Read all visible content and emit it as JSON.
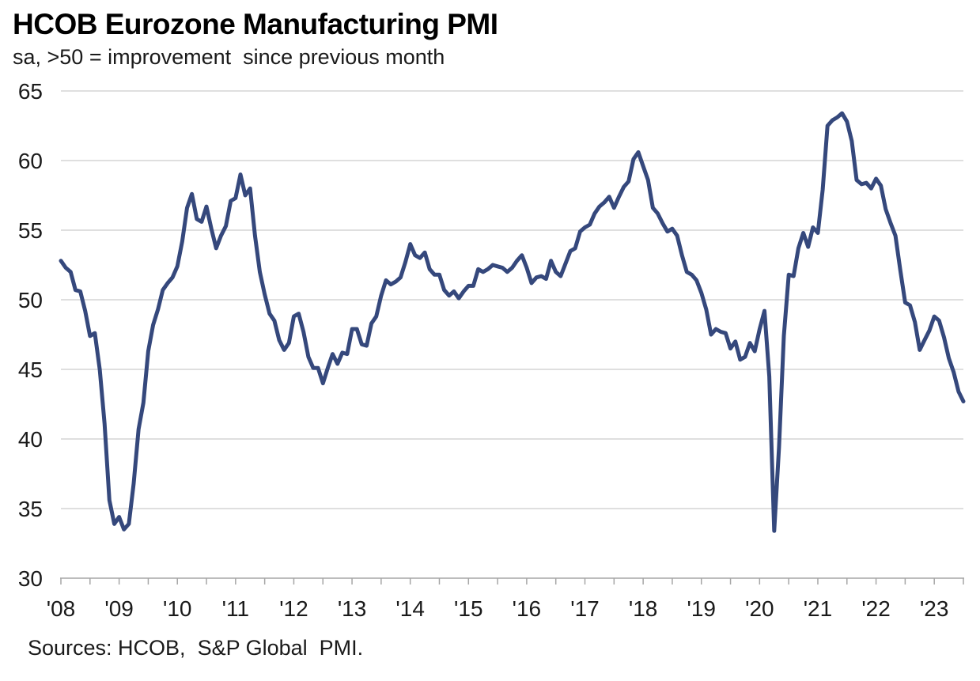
{
  "header": {
    "title": "HCOB Eurozone Manufacturing PMI",
    "subtitle": "sa, >50 = improvement  since previous month"
  },
  "footer": {
    "source": "Sources: HCOB,  S&P Global  PMI."
  },
  "chart_data": {
    "type": "line",
    "title": "HCOB Eurozone Manufacturing PMI",
    "subtitle": "sa, >50 = improvement since previous month",
    "source": "Sources: HCOB, S&P Global PMI.",
    "frequency": "monthly",
    "x_start": "2008-01",
    "x_end": "2023-07",
    "xlabel": "",
    "ylabel": "",
    "ylim": [
      30,
      65
    ],
    "y_ticks": [
      30,
      35,
      40,
      45,
      50,
      55,
      60,
      65
    ],
    "x_tick_labels": [
      "'08",
      "'09",
      "'10",
      "'11",
      "'12",
      "'13",
      "'14",
      "'15",
      "'16",
      "'17",
      "'18",
      "'19",
      "'20",
      "'21",
      "'22",
      "'23"
    ],
    "x_minor_ticks": "every 6 months",
    "grid": "horizontal",
    "legend": "none",
    "line_color": "#35487c",
    "grid_color": "#cccccc",
    "axis_color": "#a6a6a6",
    "label_color": "#1a1a1a",
    "series": [
      {
        "name": "Eurozone Manufacturing PMI (sa)",
        "values_by_year": {
          "2008": [
            52.8,
            52.3,
            52.0,
            50.7,
            50.6,
            49.2,
            47.4,
            47.6,
            45.0,
            41.1,
            35.6,
            33.9
          ],
          "2009": [
            34.4,
            33.5,
            33.9,
            36.8,
            40.7,
            42.6,
            46.3,
            48.2,
            49.3,
            50.7,
            51.2,
            51.6
          ],
          "2010": [
            52.4,
            54.2,
            56.6,
            57.6,
            55.8,
            55.6,
            56.7,
            55.1,
            53.7,
            54.6,
            55.3,
            57.1
          ],
          "2011": [
            57.3,
            59.0,
            57.5,
            58.0,
            54.6,
            52.0,
            50.4,
            49.0,
            48.5,
            47.1,
            46.4,
            46.9
          ],
          "2012": [
            48.8,
            49.0,
            47.7,
            45.9,
            45.1,
            45.1,
            44.0,
            45.1,
            46.1,
            45.4,
            46.2,
            46.1
          ],
          "2013": [
            47.9,
            47.9,
            46.8,
            46.7,
            48.3,
            48.8,
            50.3,
            51.4,
            51.1,
            51.3,
            51.6,
            52.7
          ],
          "2014": [
            54.0,
            53.2,
            53.0,
            53.4,
            52.2,
            51.8,
            51.8,
            50.7,
            50.3,
            50.6,
            50.1,
            50.6
          ],
          "2015": [
            51.0,
            51.0,
            52.2,
            52.0,
            52.2,
            52.5,
            52.4,
            52.3,
            52.0,
            52.3,
            52.8,
            53.2
          ],
          "2016": [
            52.3,
            51.2,
            51.6,
            51.7,
            51.5,
            52.8,
            52.0,
            51.7,
            52.6,
            53.5,
            53.7,
            54.9
          ],
          "2017": [
            55.2,
            55.4,
            56.2,
            56.7,
            57.0,
            57.4,
            56.6,
            57.4,
            58.1,
            58.5,
            60.1,
            60.6
          ],
          "2018": [
            59.6,
            58.6,
            56.6,
            56.2,
            55.5,
            54.9,
            55.1,
            54.6,
            53.2,
            52.0,
            51.8,
            51.4
          ],
          "2019": [
            50.5,
            49.3,
            47.5,
            47.9,
            47.7,
            47.6,
            46.5,
            47.0,
            45.7,
            45.9,
            46.9,
            46.3
          ],
          "2020": [
            47.9,
            49.2,
            44.5,
            33.4,
            39.4,
            47.4,
            51.8,
            51.7,
            53.7,
            54.8,
            53.8,
            55.2
          ],
          "2021": [
            54.8,
            57.9,
            62.5,
            62.9,
            63.1,
            63.4,
            62.8,
            61.4,
            58.6,
            58.3,
            58.4,
            58.0
          ],
          "2022": [
            58.7,
            58.2,
            56.5,
            55.5,
            54.6,
            52.1,
            49.8,
            49.6,
            48.4,
            46.4,
            47.1,
            47.8
          ],
          "2023": [
            48.8,
            48.5,
            47.3,
            45.8,
            44.8,
            43.4,
            42.7
          ]
        }
      }
    ]
  }
}
